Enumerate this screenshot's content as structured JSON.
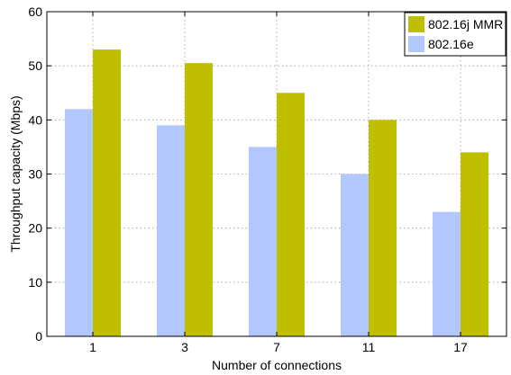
{
  "chart_data": {
    "type": "bar",
    "xlabel": "Number of connections",
    "ylabel": "Throughput capacity (Mbps)",
    "categories": [
      "1",
      "3",
      "7",
      "11",
      "17"
    ],
    "ylim": [
      0,
      60
    ],
    "yticks": [
      0,
      10,
      20,
      30,
      40,
      50,
      60
    ],
    "grid": true,
    "legend_position": "top-right",
    "series": [
      {
        "name": "802.16e",
        "values": [
          42,
          39,
          35,
          30,
          23
        ],
        "color": "#b3c7ff"
      },
      {
        "name": "802.16j MMR",
        "values": [
          53,
          50.5,
          45,
          40,
          34
        ],
        "color": "#bfbf00"
      }
    ],
    "legend_order": [
      "802.16j MMR",
      "802.16e"
    ]
  }
}
